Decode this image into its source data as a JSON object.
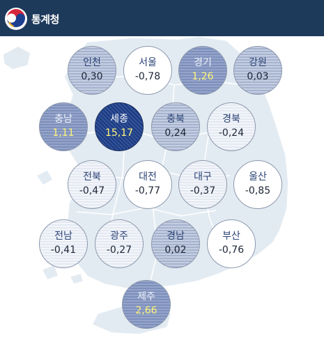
{
  "header": {
    "brand_name": "통계청",
    "logo_icon": "taegeuk-logo-icon",
    "background_color": "#1e3a5b"
  },
  "map": {
    "regions": [
      {
        "id": "incheon",
        "name": "인천",
        "value": "0,30",
        "tier": 2
      },
      {
        "id": "seoul",
        "name": "서울",
        "value": "-0,78",
        "tier": 0
      },
      {
        "id": "gyeonggi",
        "name": "경기",
        "value": "1,26",
        "tier": 3
      },
      {
        "id": "gangwon",
        "name": "강원",
        "value": "0,03",
        "tier": 2
      },
      {
        "id": "chungnam",
        "name": "충남",
        "value": "1,11",
        "tier": 3
      },
      {
        "id": "sejong",
        "name": "세종",
        "value": "15,17",
        "tier": 4
      },
      {
        "id": "chungbuk",
        "name": "충북",
        "value": "0,24",
        "tier": 2
      },
      {
        "id": "gyeongbuk",
        "name": "경북",
        "value": "-0,24",
        "tier": 1
      },
      {
        "id": "jeonbuk",
        "name": "전북",
        "value": "-0,47",
        "tier": 1
      },
      {
        "id": "daejeon",
        "name": "대전",
        "value": "-0,77",
        "tier": 0
      },
      {
        "id": "daegu",
        "name": "대구",
        "value": "-0,37",
        "tier": 1
      },
      {
        "id": "ulsan",
        "name": "울산",
        "value": "-0,85",
        "tier": 0
      },
      {
        "id": "jeonnam",
        "name": "전남",
        "value": "-0,41",
        "tier": 1
      },
      {
        "id": "gwangju",
        "name": "광주",
        "value": "-0,27",
        "tier": 1
      },
      {
        "id": "gyeongnam",
        "name": "경남",
        "value": "0,02",
        "tier": 2
      },
      {
        "id": "busan",
        "name": "부산",
        "value": "-0,76",
        "tier": 0
      },
      {
        "id": "jeju",
        "name": "제주",
        "value": "2,66",
        "tier": 3
      }
    ]
  }
}
